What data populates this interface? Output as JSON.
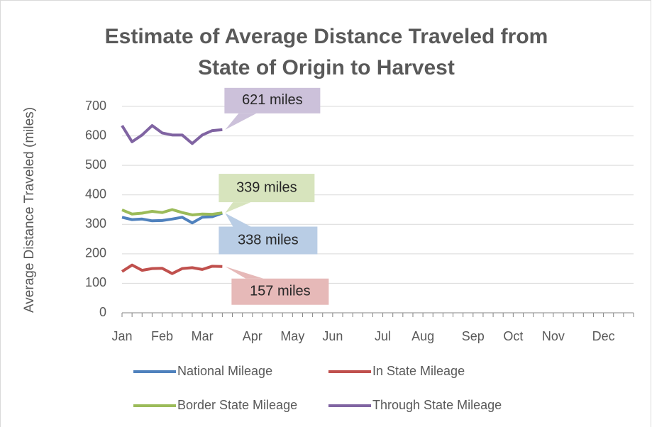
{
  "chart_data": {
    "type": "line",
    "title": "Estimate of Average Distance Traveled from State of Origin to Harvest",
    "y_label": "Average Distance Traveled (miles)",
    "categories": [
      "Jan",
      null,
      null,
      null,
      "Feb",
      null,
      null,
      null,
      "Mar",
      null,
      null,
      null,
      null,
      "Apr",
      null,
      null,
      null,
      "May",
      null,
      null,
      null,
      "Jun",
      null,
      null,
      null,
      null,
      "Jul",
      null,
      null,
      null,
      "Aug",
      null,
      null,
      null,
      null,
      "Sep",
      null,
      null,
      null,
      "Oct",
      null,
      null,
      null,
      "Nov",
      null,
      null,
      null,
      null,
      "Dec",
      null,
      null,
      null
    ],
    "series": [
      {
        "name": "National Mileage",
        "color": "#4f81bd",
        "values": [
          324,
          316,
          318,
          312,
          313,
          318,
          324,
          305,
          324,
          326,
          338,
          null,
          null,
          null,
          null,
          null,
          null,
          null,
          null,
          null,
          null,
          null,
          null,
          null,
          null,
          null,
          null,
          null,
          null,
          null,
          null,
          null,
          null,
          null,
          null,
          null,
          null,
          null,
          null,
          null,
          null,
          null,
          null,
          null,
          null,
          null,
          null,
          null,
          null,
          null,
          null,
          null
        ]
      },
      {
        "name": "In State Mileage",
        "color": "#c0504d",
        "values": [
          140,
          162,
          144,
          150,
          151,
          133,
          150,
          153,
          147,
          158,
          157,
          null,
          null,
          null,
          null,
          null,
          null,
          null,
          null,
          null,
          null,
          null,
          null,
          null,
          null,
          null,
          null,
          null,
          null,
          null,
          null,
          null,
          null,
          null,
          null,
          null,
          null,
          null,
          null,
          null,
          null,
          null,
          null,
          null,
          null,
          null,
          null,
          null,
          null,
          null,
          null,
          null
        ]
      },
      {
        "name": "Border State Mileage",
        "color": "#9bbb59",
        "values": [
          349,
          335,
          338,
          344,
          340,
          350,
          340,
          332,
          335,
          334,
          339,
          null,
          null,
          null,
          null,
          null,
          null,
          null,
          null,
          null,
          null,
          null,
          null,
          null,
          null,
          null,
          null,
          null,
          null,
          null,
          null,
          null,
          null,
          null,
          null,
          null,
          null,
          null,
          null,
          null,
          null,
          null,
          null,
          null,
          null,
          null,
          null,
          null,
          null,
          null,
          null,
          null
        ]
      },
      {
        "name": "Through State Mileage",
        "color": "#8064a2",
        "values": [
          635,
          580,
          603,
          635,
          610,
          603,
          603,
          574,
          603,
          618,
          621,
          null,
          null,
          null,
          null,
          null,
          null,
          null,
          null,
          null,
          null,
          null,
          null,
          null,
          null,
          null,
          null,
          null,
          null,
          null,
          null,
          null,
          null,
          null,
          null,
          null,
          null,
          null,
          null,
          null,
          null,
          null,
          null,
          null,
          null,
          null,
          null,
          null,
          null,
          null,
          null,
          null
        ]
      }
    ],
    "annotations": [
      {
        "text": "338 miles",
        "color": "#b9cde5"
      },
      {
        "text": "157 miles",
        "color": "#e6b9b8"
      },
      {
        "text": "339 miles",
        "color": "#d7e4bd"
      },
      {
        "text": "621 miles",
        "color": "#ccc1da"
      }
    ],
    "ylim": [
      0,
      700
    ],
    "yticks": [
      0,
      100,
      200,
      300,
      400,
      500,
      600,
      700
    ],
    "grid": true
  }
}
